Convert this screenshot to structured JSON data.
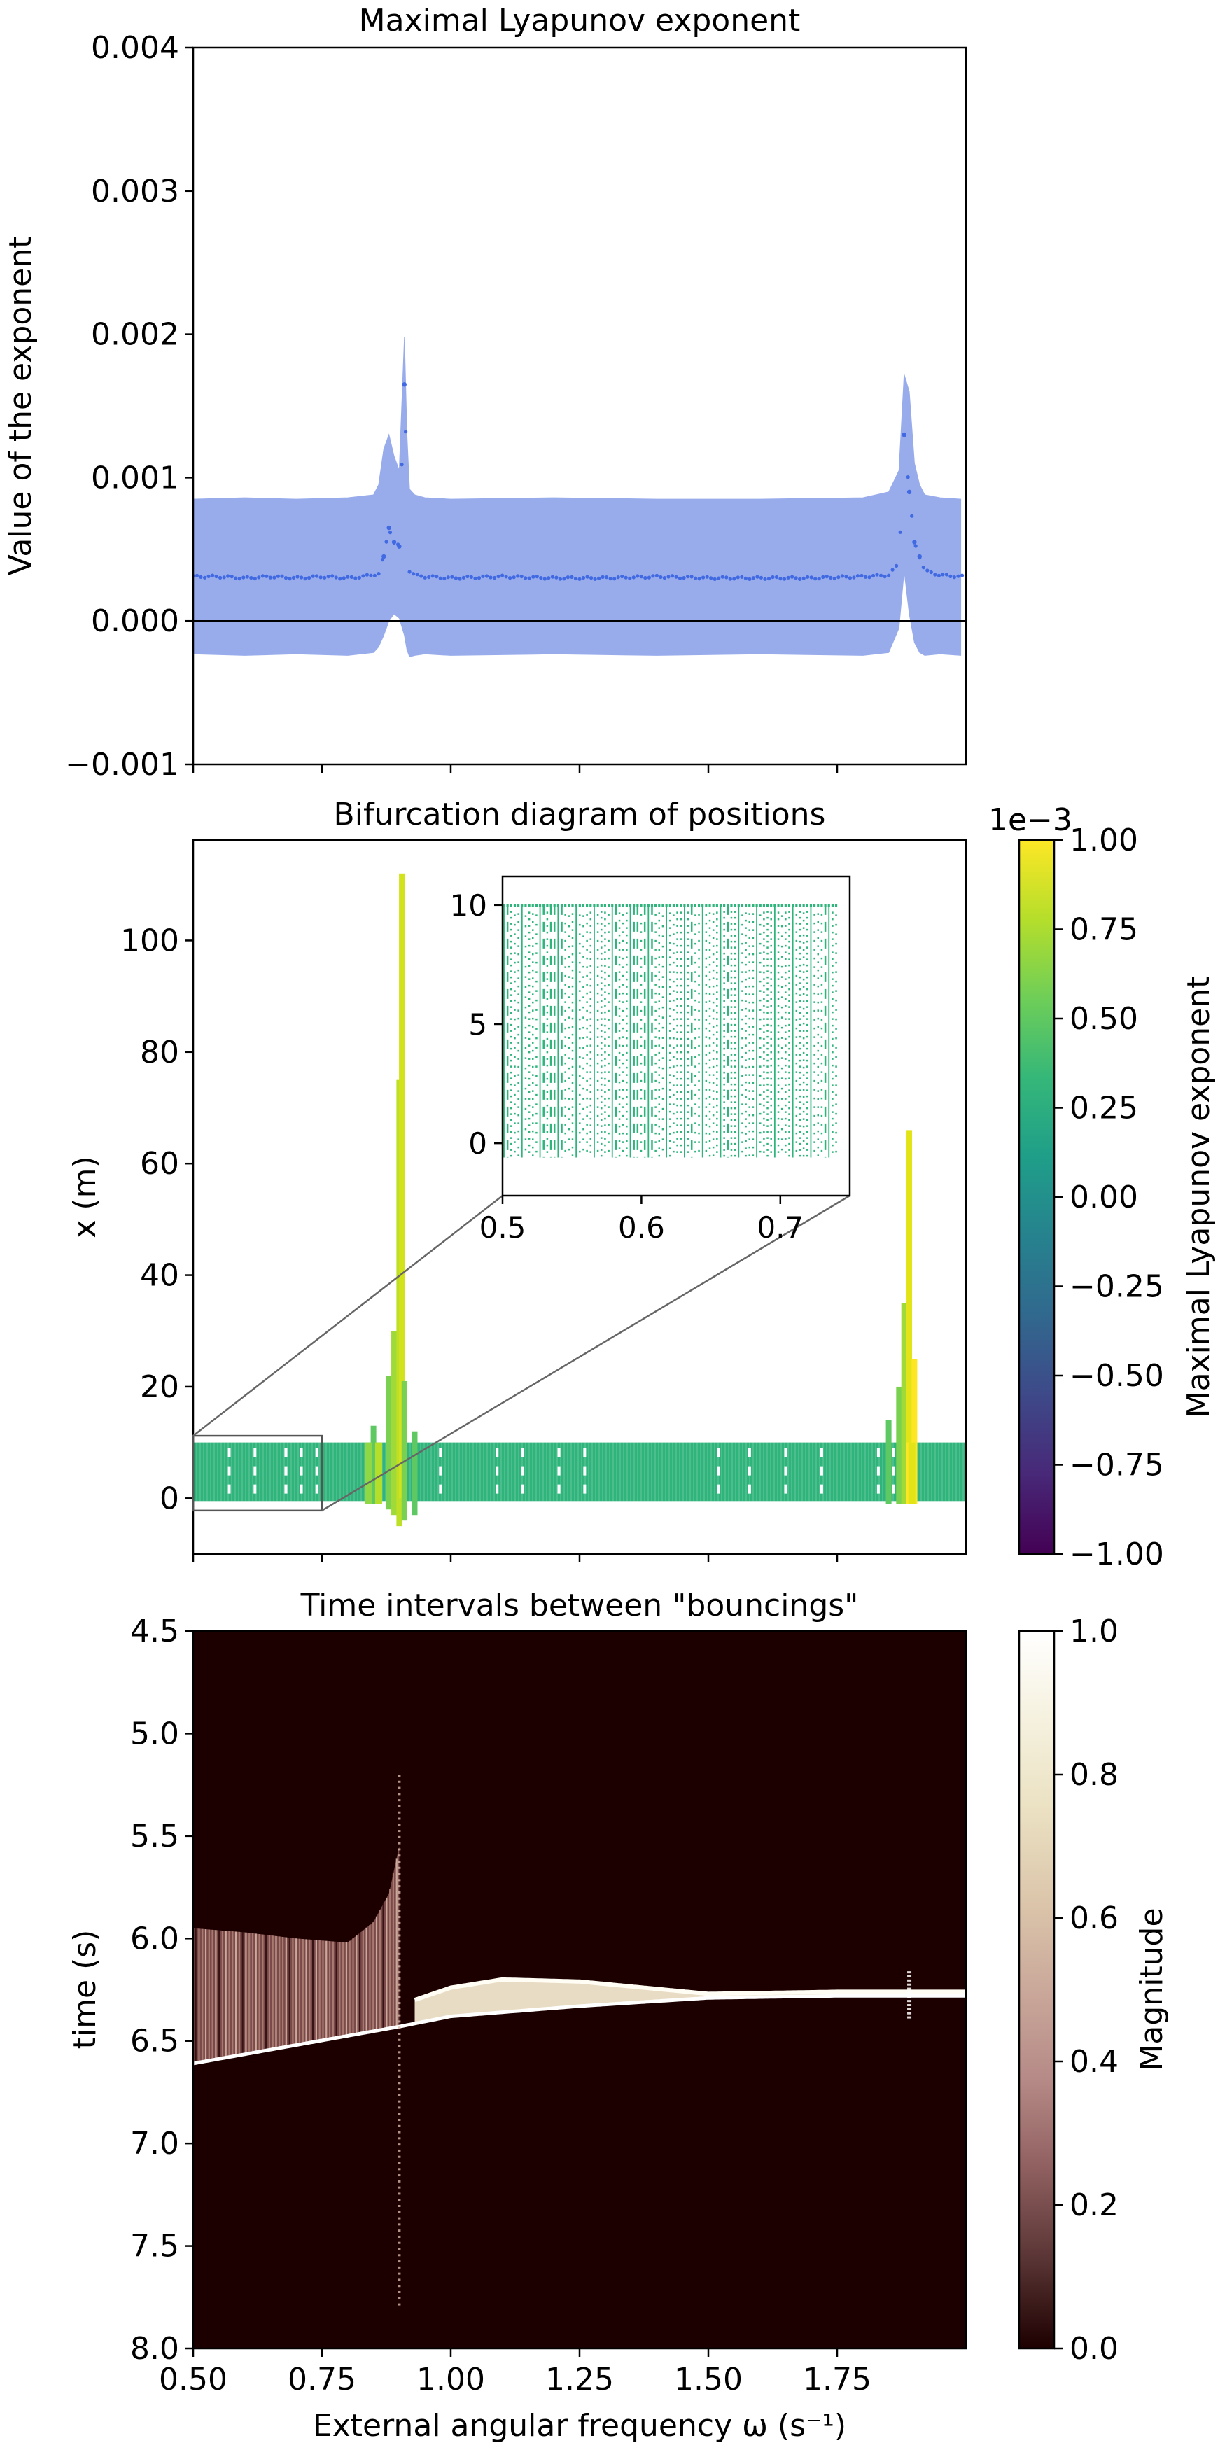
{
  "chart_data": [
    {
      "type": "scatter",
      "title": "Maximal Lyapunov exponent",
      "xlabel": "",
      "ylabel": "Value of the exponent",
      "xlim": [
        0.5,
        2.0
      ],
      "ylim": [
        -0.001,
        0.004
      ],
      "yticks": [
        -0.001,
        0.0,
        0.001,
        0.002,
        0.003,
        0.004
      ],
      "ytick_labels": [
        "−0.001",
        "0.000",
        "0.001",
        "0.002",
        "0.003",
        "0.004"
      ],
      "xticks": [
        0.5,
        0.75,
        1.0,
        1.25,
        1.5,
        1.75
      ],
      "colors": {
        "mean": "#4169e1",
        "band": "#98acec",
        "zero_line": "#000000"
      },
      "series": [
        {
          "role": "mean",
          "x": [
            0.5,
            0.55,
            0.6,
            0.65,
            0.7,
            0.75,
            0.8,
            0.83,
            0.86,
            0.87,
            0.88,
            0.89,
            0.9,
            0.91,
            0.92,
            0.93,
            0.95,
            1.0,
            1.1,
            1.2,
            1.3,
            1.4,
            1.5,
            1.6,
            1.7,
            1.8,
            1.85,
            1.87,
            1.88,
            1.89,
            1.9,
            1.91,
            1.92,
            1.95,
            1.99
          ],
          "y": [
            0.00031,
            0.00031,
            0.0003,
            0.00031,
            0.0003,
            0.00031,
            0.0003,
            0.00031,
            0.00033,
            0.00045,
            0.00065,
            0.00055,
            0.00052,
            0.00165,
            0.00035,
            0.00032,
            0.00031,
            0.0003,
            0.00031,
            0.0003,
            0.0003,
            0.00031,
            0.0003,
            0.0003,
            0.0003,
            0.00031,
            0.00032,
            0.0004,
            0.0013,
            0.0009,
            0.00055,
            0.00045,
            0.00035,
            0.00032,
            0.00031
          ]
        },
        {
          "role": "band",
          "x": [
            0.5,
            0.6,
            0.7,
            0.8,
            0.85,
            0.86,
            0.87,
            0.88,
            0.89,
            0.9,
            0.91,
            0.915,
            0.92,
            0.93,
            0.95,
            1.0,
            1.2,
            1.4,
            1.6,
            1.8,
            1.85,
            1.87,
            1.88,
            1.89,
            1.9,
            1.91,
            1.92,
            1.95,
            1.99
          ],
          "upper": [
            0.00085,
            0.00086,
            0.00085,
            0.00086,
            0.00088,
            0.00095,
            0.0012,
            0.0013,
            0.00115,
            0.00105,
            0.00198,
            0.0013,
            0.00092,
            0.00088,
            0.00086,
            0.00085,
            0.00086,
            0.00085,
            0.00085,
            0.00086,
            0.0009,
            0.00105,
            0.00172,
            0.0016,
            0.0011,
            0.00095,
            0.00088,
            0.00086,
            0.00085
          ],
          "lower": [
            -0.00023,
            -0.00024,
            -0.00023,
            -0.00024,
            -0.00022,
            -0.00018,
            -0.0001,
            0.0,
            5e-05,
            2e-05,
            -0.0001,
            -0.0002,
            -0.00025,
            -0.00024,
            -0.00023,
            -0.00024,
            -0.00023,
            -0.00024,
            -0.00023,
            -0.00024,
            -0.00022,
            -5e-05,
            0.00035,
            5e-05,
            -0.00015,
            -0.00022,
            -0.00024,
            -0.00023,
            -0.00024
          ]
        }
      ]
    },
    {
      "type": "scatter",
      "title": "Bifurcation diagram of positions",
      "xlabel": "",
      "ylabel": "x (m)",
      "xlim": [
        0.5,
        2.0
      ],
      "ylim": [
        -10,
        118
      ],
      "yticks": [
        0,
        20,
        40,
        60,
        80,
        100
      ],
      "xticks": [
        0.5,
        0.75,
        1.0,
        1.25,
        1.5,
        1.75
      ],
      "band_range": [
        -0.5,
        10
      ],
      "band_color": "#2fb47c",
      "spikes": [
        {
          "x": 0.85,
          "ymax": 13,
          "ymin": -1,
          "color": "#5ec962"
        },
        {
          "x": 0.88,
          "ymax": 22,
          "ymin": -2,
          "color": "#7ad151"
        },
        {
          "x": 0.89,
          "ymax": 30,
          "ymin": -3,
          "color": "#a0da39"
        },
        {
          "x": 0.9,
          "ymax": 75,
          "ymin": -5,
          "color": "#bddf26"
        },
        {
          "x": 0.905,
          "ymax": 112,
          "ymin": 0,
          "color": "#d2e21b"
        },
        {
          "x": 0.91,
          "ymax": 21,
          "ymin": -4,
          "color": "#7ad151"
        },
        {
          "x": 0.93,
          "ymax": 12,
          "ymin": -3,
          "color": "#5ec962"
        },
        {
          "x": 1.85,
          "ymax": 14,
          "ymin": -1,
          "color": "#5ec962"
        },
        {
          "x": 1.87,
          "ymax": 20,
          "ymin": -1,
          "color": "#7ad151"
        },
        {
          "x": 1.88,
          "ymax": 35,
          "ymin": -1,
          "color": "#a0da39"
        },
        {
          "x": 1.89,
          "ymax": 66,
          "ymin": -1,
          "color": "#e2e418"
        },
        {
          "x": 1.9,
          "ymax": 25,
          "ymin": -1,
          "color": "#fde725"
        }
      ],
      "gaps_x": [
        0.57,
        0.62,
        0.68,
        0.71,
        0.74,
        0.9,
        0.98,
        1.09,
        1.14,
        1.21,
        1.26,
        1.52,
        1.58,
        1.65,
        1.72,
        1.83,
        1.86
      ],
      "inset": {
        "xlim": [
          0.5,
          0.75
        ],
        "ylim": [
          -2.2,
          11.2
        ],
        "xticks": [
          0.5,
          0.6,
          0.7
        ],
        "yticks": [
          0,
          5,
          10
        ],
        "band_range": [
          -0.6,
          10
        ]
      },
      "colorbar": {
        "label": "Maximal Lyapunov exponent",
        "offset_text": "1e−3",
        "range": [
          -1.0,
          1.0
        ],
        "ticks": [
          "1.00",
          "0.75",
          "0.50",
          "0.25",
          "0.00",
          "−0.25",
          "−0.50",
          "−0.75",
          "−1.00"
        ],
        "colormap": "viridis",
        "stops": [
          "#440154",
          "#482878",
          "#3e4989",
          "#31688e",
          "#26828e",
          "#1f9e89",
          "#35b779",
          "#6ece58",
          "#b5de2b",
          "#fde725"
        ]
      }
    },
    {
      "type": "heatmap",
      "title": "Time intervals between \"bouncings\"",
      "xlabel": "External angular frequency ω (s⁻¹)",
      "ylabel": "time (s)",
      "xlim": [
        0.5,
        2.0
      ],
      "ylim": [
        8.0,
        4.5
      ],
      "yticks": [
        "4.5",
        "5.0",
        "5.5",
        "6.0",
        "6.5",
        "7.0",
        "7.5",
        "8.0"
      ],
      "ytick_values": [
        4.5,
        5.0,
        5.5,
        6.0,
        6.5,
        7.0,
        7.5,
        8.0
      ],
      "xticks": [
        "0.50",
        "0.75",
        "1.00",
        "1.25",
        "1.50",
        "1.75"
      ],
      "xtick_values": [
        0.5,
        0.75,
        1.0,
        1.25,
        1.5,
        1.75
      ],
      "background_color": "#1c0000",
      "lower_boundary": {
        "x": [
          0.5,
          0.9,
          1.0,
          1.25,
          1.5,
          1.75,
          2.0
        ],
        "t": [
          6.61,
          6.43,
          6.38,
          6.33,
          6.29,
          6.28,
          6.28
        ]
      },
      "upper_boundary": {
        "x": [
          0.5,
          0.6,
          0.7,
          0.8,
          0.85,
          0.88,
          0.9
        ],
        "t": [
          5.95,
          5.97,
          6.0,
          6.02,
          5.92,
          5.78,
          5.55
        ]
      },
      "right_band_upper": {
        "x": [
          0.93,
          1.0,
          1.1,
          1.25,
          1.5,
          1.75,
          2.0
        ],
        "t": [
          6.3,
          6.24,
          6.2,
          6.21,
          6.27,
          6.26,
          6.26
        ]
      },
      "colorbar": {
        "label": "Magnitude",
        "range": [
          0.0,
          1.0
        ],
        "ticks": [
          "1.0",
          "0.8",
          "0.6",
          "0.4",
          "0.2",
          "0.0"
        ],
        "colormap": "pink",
        "stops": [
          "#1e0000",
          "#5a3535",
          "#8f5f5f",
          "#b68a87",
          "#caa89a",
          "#dcc6ab",
          "#ebe1c2",
          "#f5f1de",
          "#ffffff"
        ]
      }
    }
  ]
}
